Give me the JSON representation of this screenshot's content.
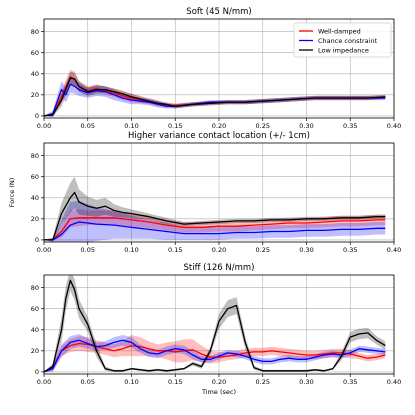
{
  "chart_data": [
    {
      "type": "line",
      "title": "Soft (45 N/mm)",
      "xlabel": "",
      "ylabel": "",
      "xlim": [
        0,
        0.4
      ],
      "ylim": [
        -2,
        92
      ],
      "xticks": [
        0.0,
        0.05,
        0.1,
        0.15,
        0.2,
        0.25,
        0.3,
        0.35,
        0.4
      ],
      "xtick_labels": [
        "0.00",
        "0.05",
        "0.10",
        "0.15",
        "0.20",
        "0.25",
        "0.30",
        "0.35",
        "0.40"
      ],
      "yticks": [
        0,
        20,
        40,
        60,
        80
      ],
      "grid": true,
      "legend_position": "top-right",
      "series": [
        {
          "name": "Well-damped",
          "color": "#ff0000",
          "x": [
            0,
            0.01,
            0.02,
            0.03,
            0.035,
            0.04,
            0.05,
            0.06,
            0.07,
            0.08,
            0.09,
            0.1,
            0.11,
            0.12,
            0.13,
            0.14,
            0.15,
            0.17,
            0.19,
            0.21,
            0.23,
            0.25,
            0.27,
            0.29,
            0.31,
            0.33,
            0.35,
            0.37,
            0.39
          ],
          "y": [
            0,
            1,
            18,
            37,
            35,
            28,
            24,
            26,
            24,
            22,
            19,
            17,
            15,
            14,
            12,
            10,
            10,
            11,
            12,
            13,
            13,
            14,
            15,
            16,
            17,
            17,
            17,
            17,
            18
          ],
          "band": [
            0,
            2,
            6,
            7,
            7,
            5,
            4,
            4,
            4,
            4,
            4,
            4,
            3,
            3,
            3,
            2,
            2,
            2,
            2,
            2,
            2,
            2,
            2,
            2,
            2,
            2,
            2,
            2,
            2
          ]
        },
        {
          "name": "Chance constraint",
          "color": "#0000ff",
          "x": [
            0,
            0.01,
            0.02,
            0.025,
            0.03,
            0.035,
            0.04,
            0.05,
            0.06,
            0.07,
            0.08,
            0.09,
            0.1,
            0.11,
            0.12,
            0.13,
            0.14,
            0.15,
            0.17,
            0.19,
            0.21,
            0.23,
            0.25,
            0.27,
            0.29,
            0.31,
            0.33,
            0.35,
            0.37,
            0.39
          ],
          "y": [
            0,
            2,
            25,
            20,
            30,
            28,
            25,
            22,
            24,
            23,
            20,
            17,
            15,
            14,
            13,
            11,
            9,
            9,
            11,
            13,
            13,
            13,
            14,
            15,
            16,
            17,
            17,
            17,
            17,
            17
          ],
          "band": [
            0,
            3,
            8,
            7,
            8,
            7,
            6,
            5,
            5,
            5,
            5,
            4,
            4,
            3,
            3,
            3,
            2,
            2,
            2,
            2,
            2,
            2,
            2,
            2,
            2,
            2,
            2,
            2,
            2,
            2
          ]
        },
        {
          "name": "Low impedance",
          "color": "#000000",
          "x": [
            0,
            0.01,
            0.02,
            0.03,
            0.035,
            0.04,
            0.05,
            0.06,
            0.07,
            0.08,
            0.09,
            0.1,
            0.11,
            0.12,
            0.13,
            0.14,
            0.15,
            0.17,
            0.19,
            0.21,
            0.23,
            0.25,
            0.27,
            0.29,
            0.31,
            0.33,
            0.35,
            0.37,
            0.39
          ],
          "y": [
            0,
            1,
            15,
            36,
            35,
            28,
            23,
            25,
            25,
            23,
            21,
            18,
            16,
            14,
            12,
            11,
            9,
            11,
            12,
            13,
            13,
            14,
            15,
            16,
            17,
            17,
            17,
            17,
            18
          ],
          "band": [
            0,
            2,
            6,
            6,
            6,
            5,
            4,
            4,
            3,
            3,
            3,
            3,
            3,
            2,
            2,
            2,
            2,
            2,
            2,
            2,
            2,
            2,
            2,
            2,
            2,
            2,
            2,
            2,
            2
          ]
        }
      ]
    },
    {
      "type": "line",
      "title": "Higher variance contact location (+/- 1cm)",
      "xlabel": "",
      "ylabel": "Force (N)",
      "xlim": [
        0,
        0.4
      ],
      "ylim": [
        -2,
        92
      ],
      "xticks": [
        0.0,
        0.05,
        0.1,
        0.15,
        0.2,
        0.25,
        0.3,
        0.35,
        0.4
      ],
      "xtick_labels": [
        "0.00",
        "0.05",
        "0.10",
        "0.15",
        "0.20",
        "0.25",
        "0.30",
        "0.35",
        "0.40"
      ],
      "yticks": [
        0,
        20,
        40,
        60,
        80
      ],
      "grid": true,
      "series": [
        {
          "name": "Well-damped",
          "color": "#ff0000",
          "x": [
            0,
            0.01,
            0.02,
            0.03,
            0.04,
            0.05,
            0.06,
            0.08,
            0.1,
            0.12,
            0.14,
            0.16,
            0.18,
            0.2,
            0.22,
            0.24,
            0.26,
            0.28,
            0.3,
            0.32,
            0.34,
            0.36,
            0.38,
            0.39
          ],
          "y": [
            0,
            0,
            8,
            20,
            21,
            21,
            21,
            21,
            19,
            17,
            14,
            12,
            12,
            13,
            13,
            14,
            15,
            16,
            16,
            17,
            18,
            18,
            19,
            19
          ],
          "band": [
            0,
            1,
            6,
            8,
            8,
            7,
            7,
            7,
            6,
            6,
            5,
            5,
            5,
            5,
            5,
            5,
            5,
            5,
            5,
            5,
            5,
            5,
            5,
            5
          ]
        },
        {
          "name": "Chance constraint",
          "color": "#0000ff",
          "x": [
            0,
            0.01,
            0.02,
            0.03,
            0.04,
            0.05,
            0.06,
            0.08,
            0.1,
            0.12,
            0.14,
            0.16,
            0.18,
            0.2,
            0.22,
            0.24,
            0.26,
            0.28,
            0.3,
            0.32,
            0.34,
            0.36,
            0.38,
            0.39
          ],
          "y": [
            0,
            0,
            5,
            14,
            17,
            16,
            15,
            14,
            12,
            10,
            8,
            6,
            6,
            6,
            7,
            7,
            8,
            8,
            9,
            9,
            10,
            10,
            11,
            11
          ],
          "band": [
            0,
            2,
            14,
            22,
            20,
            18,
            16,
            13,
            11,
            9,
            8,
            6,
            6,
            6,
            6,
            6,
            6,
            6,
            6,
            6,
            6,
            6,
            6,
            6
          ]
        },
        {
          "name": "Low impedance",
          "color": "#000000",
          "x": [
            0,
            0.01,
            0.02,
            0.03,
            0.035,
            0.04,
            0.05,
            0.06,
            0.07,
            0.08,
            0.09,
            0.1,
            0.12,
            0.14,
            0.16,
            0.18,
            0.2,
            0.22,
            0.24,
            0.26,
            0.28,
            0.3,
            0.32,
            0.34,
            0.36,
            0.38,
            0.39
          ],
          "y": [
            0,
            0,
            25,
            40,
            45,
            36,
            32,
            30,
            32,
            28,
            26,
            25,
            22,
            18,
            15,
            16,
            17,
            18,
            18,
            19,
            19,
            20,
            20,
            21,
            21,
            22,
            22
          ],
          "band": [
            0,
            2,
            10,
            14,
            15,
            12,
            9,
            8,
            8,
            6,
            5,
            4,
            3,
            3,
            2,
            2,
            2,
            2,
            2,
            2,
            2,
            2,
            2,
            2,
            2,
            2,
            2
          ]
        }
      ]
    },
    {
      "type": "line",
      "title": "Stiff (126 N/mm)",
      "xlabel": "Time (sec)",
      "ylabel": "",
      "xlim": [
        0,
        0.4
      ],
      "ylim": [
        -2,
        92
      ],
      "xticks": [
        0.0,
        0.05,
        0.1,
        0.15,
        0.2,
        0.25,
        0.3,
        0.35,
        0.4
      ],
      "xtick_labels": [
        "0.00",
        "0.05",
        "0.10",
        "0.15",
        "0.20",
        "0.25",
        "0.30",
        "0.35",
        "0.40"
      ],
      "yticks": [
        0,
        20,
        40,
        60,
        80
      ],
      "grid": true,
      "series": [
        {
          "name": "Well-damped",
          "color": "#ff0000",
          "x": [
            0,
            0.01,
            0.02,
            0.03,
            0.04,
            0.05,
            0.06,
            0.07,
            0.08,
            0.09,
            0.1,
            0.11,
            0.12,
            0.13,
            0.14,
            0.15,
            0.16,
            0.17,
            0.18,
            0.19,
            0.2,
            0.21,
            0.22,
            0.23,
            0.24,
            0.25,
            0.26,
            0.27,
            0.28,
            0.29,
            0.3,
            0.31,
            0.32,
            0.33,
            0.34,
            0.35,
            0.36,
            0.37,
            0.38,
            0.39
          ],
          "y": [
            0,
            4,
            20,
            25,
            27,
            26,
            24,
            22,
            20,
            22,
            25,
            24,
            22,
            20,
            20,
            19,
            20,
            21,
            17,
            14,
            14,
            15,
            16,
            18,
            19,
            19,
            20,
            19,
            18,
            17,
            16,
            16,
            17,
            18,
            18,
            17,
            15,
            13,
            14,
            16
          ],
          "band": [
            0,
            3,
            5,
            6,
            7,
            7,
            6,
            6,
            6,
            7,
            10,
            9,
            7,
            6,
            8,
            10,
            11,
            10,
            8,
            6,
            5,
            4,
            4,
            4,
            4,
            4,
            4,
            4,
            4,
            4,
            4,
            4,
            4,
            4,
            4,
            4,
            3,
            3,
            3,
            3
          ]
        },
        {
          "name": "Chance constraint",
          "color": "#0000ff",
          "x": [
            0,
            0.01,
            0.02,
            0.03,
            0.04,
            0.05,
            0.06,
            0.07,
            0.08,
            0.09,
            0.1,
            0.11,
            0.12,
            0.13,
            0.14,
            0.15,
            0.16,
            0.17,
            0.18,
            0.19,
            0.2,
            0.21,
            0.22,
            0.23,
            0.24,
            0.25,
            0.26,
            0.27,
            0.28,
            0.29,
            0.3,
            0.31,
            0.32,
            0.33,
            0.34,
            0.35,
            0.36,
            0.37,
            0.38,
            0.39
          ],
          "y": [
            0,
            3,
            20,
            28,
            30,
            27,
            24,
            25,
            28,
            30,
            28,
            22,
            18,
            17,
            20,
            22,
            21,
            16,
            12,
            12,
            15,
            18,
            17,
            15,
            12,
            10,
            10,
            12,
            13,
            12,
            12,
            14,
            16,
            17,
            16,
            18,
            22,
            21,
            20,
            19
          ],
          "band": [
            0,
            3,
            6,
            6,
            6,
            5,
            4,
            4,
            5,
            5,
            5,
            4,
            4,
            4,
            4,
            4,
            4,
            4,
            3,
            3,
            3,
            3,
            3,
            3,
            3,
            3,
            3,
            3,
            3,
            3,
            3,
            3,
            3,
            3,
            3,
            3,
            3,
            3,
            3,
            3
          ]
        },
        {
          "name": "Low impedance",
          "color": "#000000",
          "x": [
            0,
            0.01,
            0.02,
            0.025,
            0.03,
            0.035,
            0.04,
            0.05,
            0.06,
            0.07,
            0.08,
            0.09,
            0.1,
            0.11,
            0.12,
            0.13,
            0.14,
            0.15,
            0.16,
            0.17,
            0.18,
            0.19,
            0.2,
            0.21,
            0.22,
            0.23,
            0.24,
            0.25,
            0.26,
            0.27,
            0.28,
            0.29,
            0.3,
            0.31,
            0.32,
            0.33,
            0.34,
            0.35,
            0.36,
            0.37,
            0.38,
            0.39
          ],
          "y": [
            0,
            5,
            40,
            70,
            87,
            78,
            60,
            45,
            20,
            3,
            1,
            1,
            3,
            2,
            1,
            2,
            1,
            2,
            3,
            8,
            5,
            20,
            48,
            60,
            63,
            28,
            4,
            1,
            1,
            1,
            1,
            1,
            1,
            2,
            1,
            3,
            15,
            33,
            36,
            37,
            30,
            25
          ],
          "band": [
            0,
            3,
            12,
            12,
            10,
            10,
            9,
            7,
            6,
            2,
            1,
            1,
            1,
            1,
            1,
            1,
            1,
            1,
            1,
            2,
            2,
            4,
            7,
            8,
            8,
            6,
            2,
            1,
            1,
            1,
            1,
            1,
            1,
            1,
            1,
            1,
            4,
            5,
            5,
            5,
            4,
            4
          ]
        }
      ]
    }
  ]
}
